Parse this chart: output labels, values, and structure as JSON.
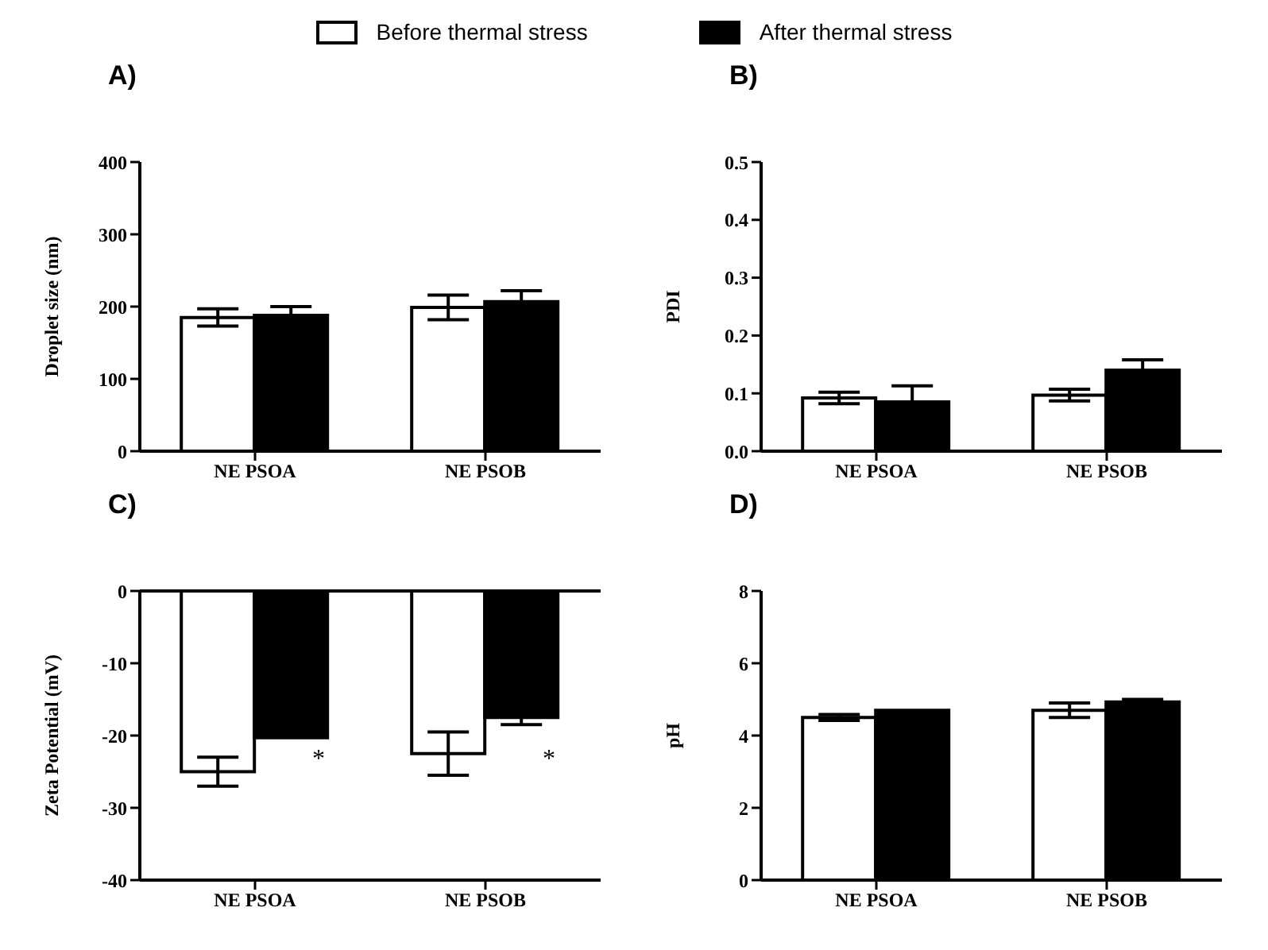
{
  "chart_data": [
    {
      "type": "bar",
      "title": "A)",
      "ylabel": "Droplet size (nm)",
      "categories": [
        "NE PSOA",
        "NE PSOB"
      ],
      "legend": "top",
      "ylim": [
        0,
        400
      ],
      "yticks": [
        0,
        100,
        200,
        300,
        400
      ],
      "series": [
        {
          "name": "Before thermal stress",
          "color": "#ffffff",
          "values": [
            185,
            199
          ],
          "errors": [
            12,
            17
          ]
        },
        {
          "name": "After thermal stress",
          "color": "#000000",
          "values": [
            188,
            207
          ],
          "errors": [
            12,
            15
          ]
        }
      ]
    },
    {
      "type": "bar",
      "title": "B)",
      "ylabel": "PDI",
      "categories": [
        "NE PSOA",
        "NE PSOB"
      ],
      "ylim": [
        0,
        0.5
      ],
      "yticks": [
        {
          "value": 0,
          "label": "0.0"
        },
        {
          "value": 0.1,
          "label": "0.1"
        },
        {
          "value": 0.2,
          "label": "0.2"
        },
        {
          "value": 0.3,
          "label": "0.3"
        },
        {
          "value": 0.4,
          "label": "0.4"
        },
        {
          "value": 0.5,
          "label": "0.5"
        }
      ],
      "series": [
        {
          "color": "#ffffff",
          "values": [
            0.092,
            0.097
          ],
          "errors": [
            0.01,
            0.01
          ]
        },
        {
          "color": "#000000",
          "values": [
            0.085,
            0.14
          ],
          "errors": [
            0.028,
            0.018
          ]
        }
      ]
    },
    {
      "type": "bar",
      "title": "C)",
      "ylabel": "Zeta Potential (mV)",
      "categories": [
        "NE PSOA",
        "NE PSOB"
      ],
      "ylim": [
        -40,
        0
      ],
      "yticks": [
        0,
        -10,
        -20,
        -30,
        -40
      ],
      "annotations": [
        {
          "text": "*",
          "x": "NE PSOA",
          "y": -23
        },
        {
          "text": "*",
          "x": "NE PSOB",
          "y": -23
        }
      ],
      "series": [
        {
          "color": "#ffffff",
          "values": [
            -25,
            -22.5
          ],
          "errors": [
            2,
            3
          ]
        },
        {
          "color": "#000000",
          "values": [
            -20.3,
            -17.5
          ],
          "errors": [
            null,
            1
          ]
        }
      ]
    },
    {
      "type": "bar",
      "title": "D)",
      "ylabel": "pH",
      "categories": [
        "NE PSOA",
        "NE PSOB"
      ],
      "ylim": [
        0,
        8
      ],
      "yticks": [
        0,
        2,
        4,
        6,
        8
      ],
      "series": [
        {
          "color": "#ffffff",
          "values": [
            4.5,
            4.7
          ],
          "errors": [
            0.08,
            0.2
          ]
        },
        {
          "color": "#000000",
          "values": [
            4.7,
            4.93
          ],
          "errors": [
            null,
            0.07
          ]
        }
      ]
    }
  ]
}
